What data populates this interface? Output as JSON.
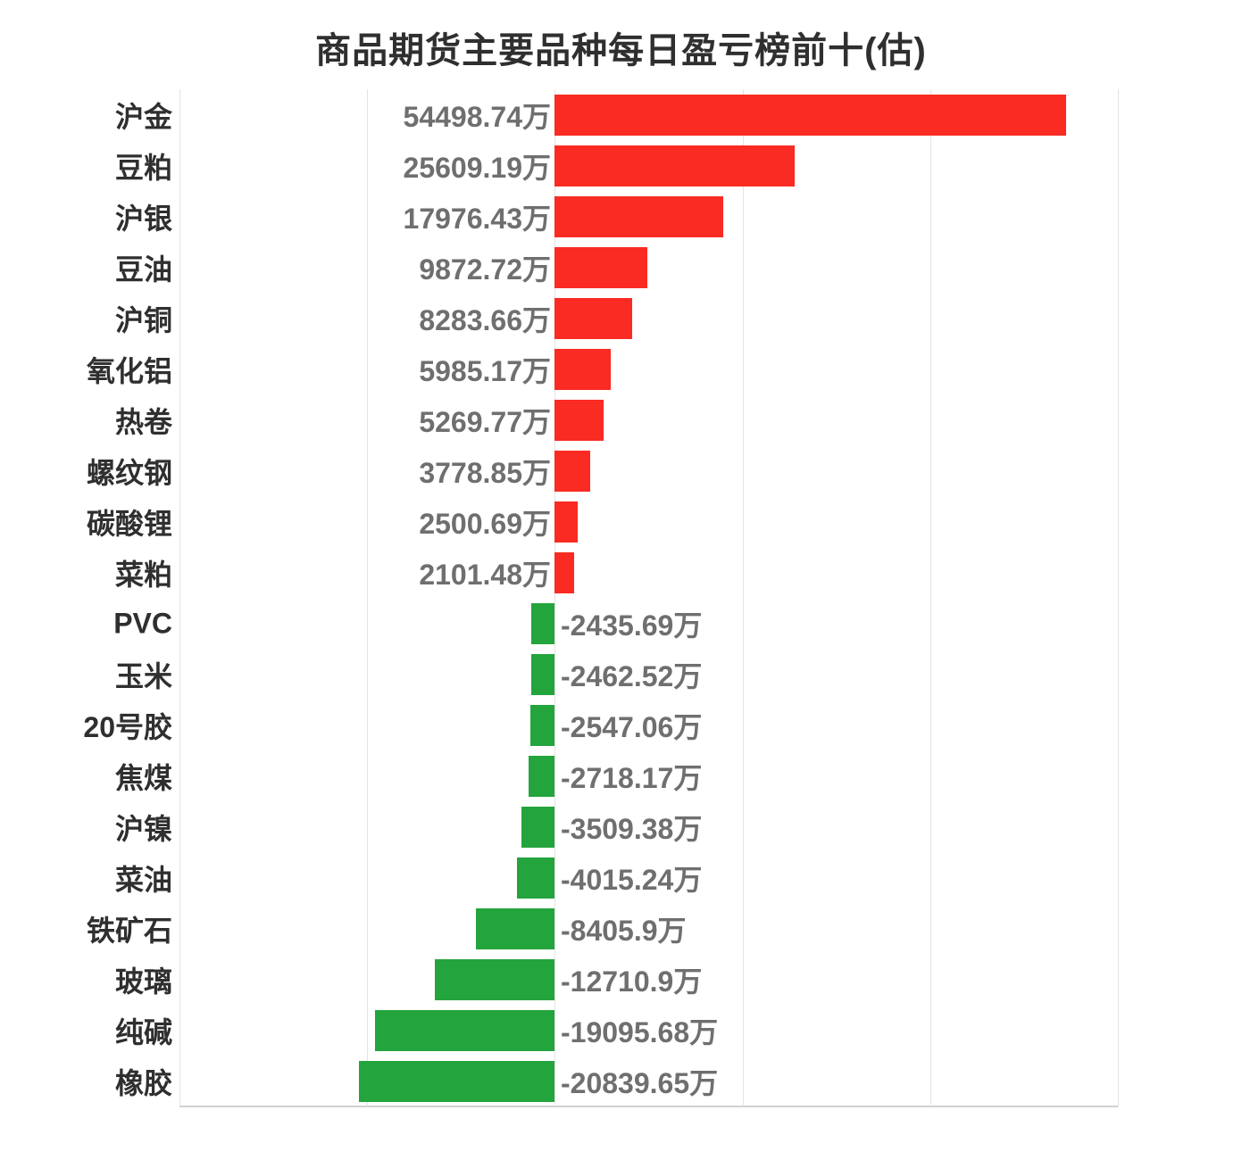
{
  "title": "商品期货主要品种每日盈亏榜前十(估)",
  "colors": {
    "positive_bar": "#f92b22",
    "negative_bar": "#24a43c",
    "gridline": "#e4e4e4",
    "axis_line": "#d0d0d0",
    "category_label": "#2f2f2f",
    "value_label": "#6f6f6f"
  },
  "chart_data": {
    "type": "bar",
    "orientation": "horizontal",
    "title": "商品期货主要品种每日盈亏榜前十(估)",
    "unit": "万",
    "xlabel": "",
    "ylabel": "",
    "xlim": [
      -40000,
      60000
    ],
    "grid_interval": 20000,
    "grid": true,
    "legend": false,
    "categories": [
      "沪金",
      "豆粕",
      "沪银",
      "豆油",
      "沪铜",
      "氧化铝",
      "热卷",
      "螺纹钢",
      "碳酸锂",
      "菜粕",
      "PVC",
      "玉米",
      "20号胶",
      "焦煤",
      "沪镍",
      "菜油",
      "铁矿石",
      "玻璃",
      "纯碱",
      "橡胶"
    ],
    "values": [
      54498.74,
      25609.19,
      17976.43,
      9872.72,
      8283.66,
      5985.17,
      5269.77,
      3778.85,
      2500.69,
      2101.48,
      -2435.69,
      -2462.52,
      -2547.06,
      -2718.17,
      -3509.38,
      -4015.24,
      -8405.9,
      -12710.9,
      -19095.68,
      -20839.65
    ],
    "value_labels": [
      "54498.74万",
      "25609.19万",
      "17976.43万",
      "9872.72万",
      "8283.66万",
      "5985.17万",
      "5269.77万",
      "3778.85万",
      "2500.69万",
      "2101.48万",
      "-2435.69万",
      "-2462.52万",
      "-2547.06万",
      "-2718.17万",
      "-3509.38万",
      "-4015.24万",
      "-8405.9万",
      "-12710.9万",
      "-19095.68万",
      "-20839.65万"
    ]
  }
}
